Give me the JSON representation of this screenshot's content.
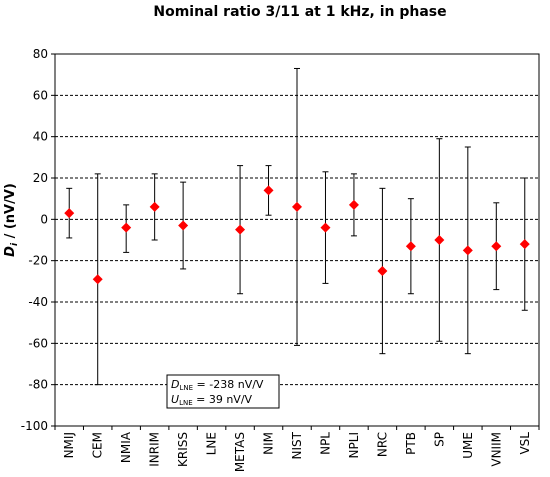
{
  "chart_data": {
    "type": "scatter",
    "title": "Nominal ratio 3/11 at 1 kHz, in phase",
    "ylabel": {
      "symbol": "D",
      "subscript": "i",
      "rest": " / (nV/V)"
    },
    "ylim": [
      -100,
      80
    ],
    "yticks": [
      80,
      60,
      40,
      20,
      0,
      -20,
      -40,
      -60,
      -80,
      -100
    ],
    "grid": "horizontal dashed",
    "marker_color": "#ff0000",
    "categories": [
      "NMIJ",
      "CEM",
      "NMIA",
      "INRIM",
      "KRISS",
      "LNE",
      "METAS",
      "NIM",
      "NIST",
      "NPL",
      "NPLI",
      "NRC",
      "PTB",
      "SP",
      "UME",
      "VNIIM",
      "VSL"
    ],
    "values": [
      3,
      -29,
      -4,
      6,
      -3,
      null,
      -5,
      14,
      6,
      -4,
      7,
      -25,
      -13,
      -10,
      -15,
      -13,
      -12
    ],
    "error_upper": [
      15,
      22,
      7,
      22,
      18,
      null,
      26,
      26,
      73,
      23,
      22,
      15,
      10,
      39,
      35,
      8,
      20
    ],
    "error_lower": [
      -9,
      -80,
      -16,
      -10,
      -24,
      null,
      -36,
      2,
      -61,
      -31,
      -8,
      -65,
      -36,
      -59,
      -65,
      -34,
      -44
    ],
    "annotation": {
      "line1": {
        "symbol": "D",
        "sub": "LNE",
        "text": " = -238 nV/V"
      },
      "line2": {
        "symbol": "U",
        "sub": "LNE",
        "text": " = 39 nV/V"
      }
    }
  }
}
